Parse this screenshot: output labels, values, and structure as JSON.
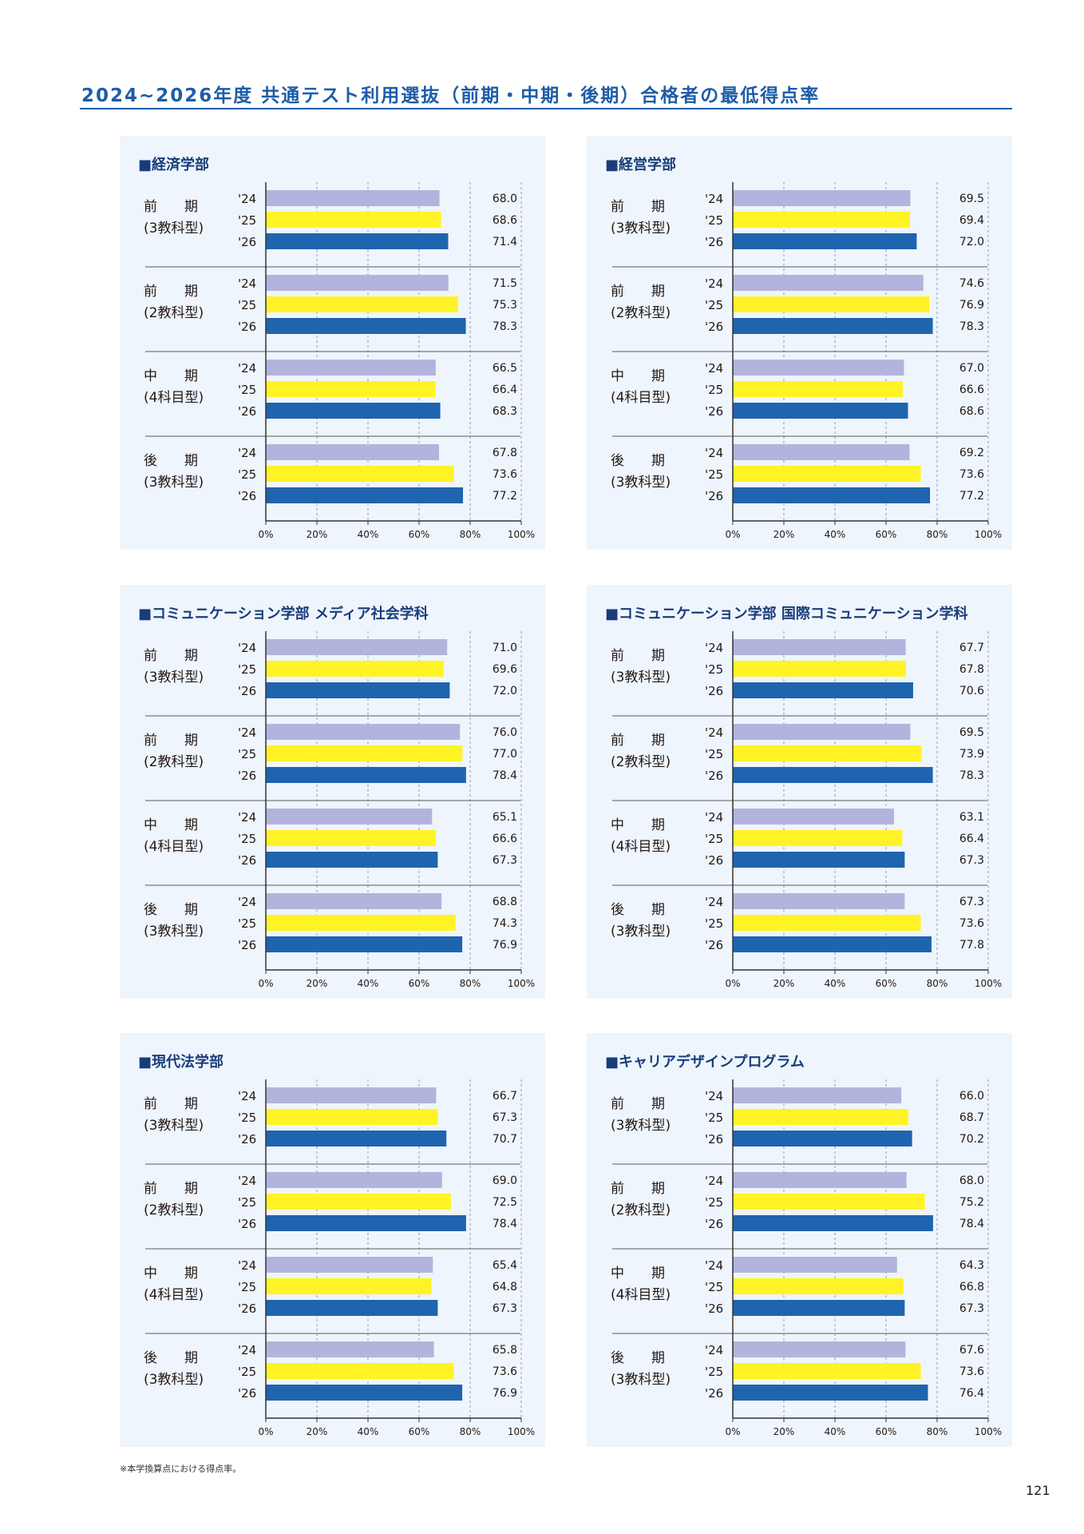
{
  "title": "2024~2026年度 共通テスト利用選抜（前期・中期・後期）合格者の最低得点率",
  "footnote": "※本学換算点における得点率。",
  "page_number": "121",
  "colors": {
    "y24": "#b3b4dd",
    "y25": "#fff325",
    "y26": "#1e64ae",
    "panel_bg": "#eef5fc",
    "title": "#1e5ca8"
  },
  "chart_data": [
    {
      "type": "bar",
      "title": "■経済学部",
      "groups": [
        {
          "label1": "前　　期",
          "label2": "(3教科型)",
          "years": [
            "'24",
            "'25",
            "'26"
          ],
          "values": [
            68.0,
            68.6,
            71.4
          ]
        },
        {
          "label1": "前　　期",
          "label2": "(2教科型)",
          "years": [
            "'24",
            "'25",
            "'26"
          ],
          "values": [
            71.5,
            75.3,
            78.3
          ]
        },
        {
          "label1": "中　　期",
          "label2": "(4科目型)",
          "years": [
            "'24",
            "'25",
            "'26"
          ],
          "values": [
            66.5,
            66.4,
            68.3
          ]
        },
        {
          "label1": "後　　期",
          "label2": "(3教科型)",
          "years": [
            "'24",
            "'25",
            "'26"
          ],
          "values": [
            67.8,
            73.6,
            77.2
          ]
        }
      ],
      "xticks": [
        "0%",
        "20%",
        "40%",
        "60%",
        "80%",
        "100%"
      ],
      "xlim": [
        0,
        100
      ]
    },
    {
      "type": "bar",
      "title": "■経営学部",
      "groups": [
        {
          "label1": "前　　期",
          "label2": "(3教科型)",
          "years": [
            "'24",
            "'25",
            "'26"
          ],
          "values": [
            69.5,
            69.4,
            72.0
          ]
        },
        {
          "label1": "前　　期",
          "label2": "(2教科型)",
          "years": [
            "'24",
            "'25",
            "'26"
          ],
          "values": [
            74.6,
            76.9,
            78.3
          ]
        },
        {
          "label1": "中　　期",
          "label2": "(4科目型)",
          "years": [
            "'24",
            "'25",
            "'26"
          ],
          "values": [
            67.0,
            66.6,
            68.6
          ]
        },
        {
          "label1": "後　　期",
          "label2": "(3教科型)",
          "years": [
            "'24",
            "'25",
            "'26"
          ],
          "values": [
            69.2,
            73.6,
            77.2
          ]
        }
      ],
      "xticks": [
        "0%",
        "20%",
        "40%",
        "60%",
        "80%",
        "100%"
      ],
      "xlim": [
        0,
        100
      ]
    },
    {
      "type": "bar",
      "title": "■コミュニケーション学部 メディア社会学科",
      "groups": [
        {
          "label1": "前　　期",
          "label2": "(3教科型)",
          "years": [
            "'24",
            "'25",
            "'26"
          ],
          "values": [
            71.0,
            69.6,
            72.0
          ]
        },
        {
          "label1": "前　　期",
          "label2": "(2教科型)",
          "years": [
            "'24",
            "'25",
            "'26"
          ],
          "values": [
            76.0,
            77.0,
            78.4
          ]
        },
        {
          "label1": "中　　期",
          "label2": "(4科目型)",
          "years": [
            "'24",
            "'25",
            "'26"
          ],
          "values": [
            65.1,
            66.6,
            67.3
          ]
        },
        {
          "label1": "後　　期",
          "label2": "(3教科型)",
          "years": [
            "'24",
            "'25",
            "'26"
          ],
          "values": [
            68.8,
            74.3,
            76.9
          ]
        }
      ],
      "xticks": [
        "0%",
        "20%",
        "40%",
        "60%",
        "80%",
        "100%"
      ],
      "xlim": [
        0,
        100
      ]
    },
    {
      "type": "bar",
      "title": "■コミュニケーション学部 国際コミュニケーション学科",
      "groups": [
        {
          "label1": "前　　期",
          "label2": "(3教科型)",
          "years": [
            "'24",
            "'25",
            "'26"
          ],
          "values": [
            67.7,
            67.8,
            70.6
          ]
        },
        {
          "label1": "前　　期",
          "label2": "(2教科型)",
          "years": [
            "'24",
            "'25",
            "'26"
          ],
          "values": [
            69.5,
            73.9,
            78.3
          ]
        },
        {
          "label1": "中　　期",
          "label2": "(4科目型)",
          "years": [
            "'24",
            "'25",
            "'26"
          ],
          "values": [
            63.1,
            66.4,
            67.3
          ]
        },
        {
          "label1": "後　　期",
          "label2": "(3教科型)",
          "years": [
            "'24",
            "'25",
            "'26"
          ],
          "values": [
            67.3,
            73.6,
            77.8
          ]
        }
      ],
      "xticks": [
        "0%",
        "20%",
        "40%",
        "60%",
        "80%",
        "100%"
      ],
      "xlim": [
        0,
        100
      ]
    },
    {
      "type": "bar",
      "title": "■現代法学部",
      "groups": [
        {
          "label1": "前　　期",
          "label2": "(3教科型)",
          "years": [
            "'24",
            "'25",
            "'26"
          ],
          "values": [
            66.7,
            67.3,
            70.7
          ]
        },
        {
          "label1": "前　　期",
          "label2": "(2教科型)",
          "years": [
            "'24",
            "'25",
            "'26"
          ],
          "values": [
            69.0,
            72.5,
            78.4
          ]
        },
        {
          "label1": "中　　期",
          "label2": "(4科目型)",
          "years": [
            "'24",
            "'25",
            "'26"
          ],
          "values": [
            65.4,
            64.8,
            67.3
          ]
        },
        {
          "label1": "後　　期",
          "label2": "(3教科型)",
          "years": [
            "'24",
            "'25",
            "'26"
          ],
          "values": [
            65.8,
            73.6,
            76.9
          ]
        }
      ],
      "xticks": [
        "0%",
        "20%",
        "40%",
        "60%",
        "80%",
        "100%"
      ],
      "xlim": [
        0,
        100
      ]
    },
    {
      "type": "bar",
      "title": "■キャリアデザインプログラム",
      "groups": [
        {
          "label1": "前　　期",
          "label2": "(3教科型)",
          "years": [
            "'24",
            "'25",
            "'26"
          ],
          "values": [
            66.0,
            68.7,
            70.2
          ]
        },
        {
          "label1": "前　　期",
          "label2": "(2教科型)",
          "years": [
            "'24",
            "'25",
            "'26"
          ],
          "values": [
            68.0,
            75.2,
            78.4
          ]
        },
        {
          "label1": "中　　期",
          "label2": "(4科目型)",
          "years": [
            "'24",
            "'25",
            "'26"
          ],
          "values": [
            64.3,
            66.8,
            67.3
          ]
        },
        {
          "label1": "後　　期",
          "label2": "(3教科型)",
          "years": [
            "'24",
            "'25",
            "'26"
          ],
          "values": [
            67.6,
            73.6,
            76.4
          ]
        }
      ],
      "xticks": [
        "0%",
        "20%",
        "40%",
        "60%",
        "80%",
        "100%"
      ],
      "xlim": [
        0,
        100
      ]
    }
  ]
}
